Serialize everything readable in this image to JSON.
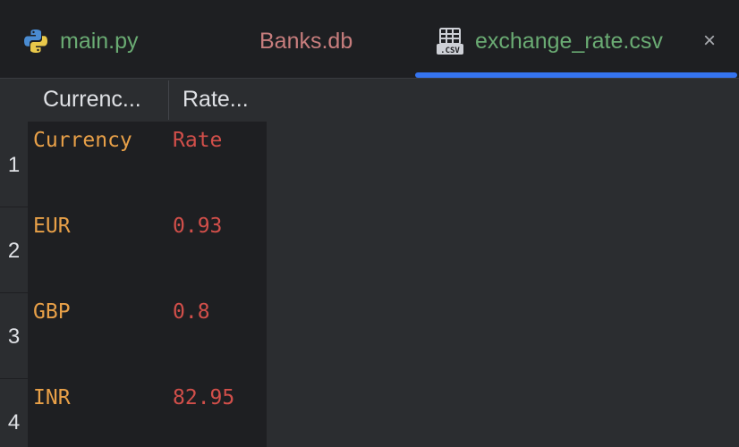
{
  "tabs": [
    {
      "label": "main.py",
      "icon": "python-icon",
      "color": "#6aab73"
    },
    {
      "label": "Banks.db",
      "color": "#c77d7d"
    },
    {
      "label": "exchange_rate.csv",
      "icon": "csv-file-icon",
      "color": "#6aab73",
      "active": true,
      "close_glyph": "×"
    }
  ],
  "table": {
    "column_headers": [
      "Currenc...",
      "Rate..."
    ],
    "rows": [
      {
        "num": "1",
        "currency": "Currency",
        "rate": "Rate"
      },
      {
        "num": "2",
        "currency": "EUR",
        "rate": "0.93"
      },
      {
        "num": "3",
        "currency": "GBP",
        "rate": "0.8"
      },
      {
        "num": "4",
        "currency": "INR",
        "rate": "82.95"
      }
    ]
  },
  "colors": {
    "accent": "#3574f0",
    "currency_text": "#e8a048",
    "rate_text": "#d24f4a",
    "editor_bg": "#1e1f22",
    "panel_bg": "#2b2d30"
  }
}
